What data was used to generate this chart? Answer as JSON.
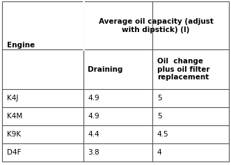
{
  "col_header_main": "Average oil capacity (adjust\nwith dipstick) (l)",
  "col_header_sub1": "Draining",
  "col_header_sub2": "Oil  change\nplus oil filter\nreplacement",
  "row_header": "Engine",
  "engines": [
    "K4J",
    "K4M",
    "K9K",
    "D4F"
  ],
  "draining": [
    "4.9",
    "4.9",
    "4.4",
    "3.8"
  ],
  "oil_change": [
    "5",
    "5",
    "4.5",
    "4"
  ],
  "bg_color": "#ffffff",
  "border_color": "#555555",
  "text_color": "#000000",
  "font_size": 7.5,
  "header_font_size": 7.5
}
